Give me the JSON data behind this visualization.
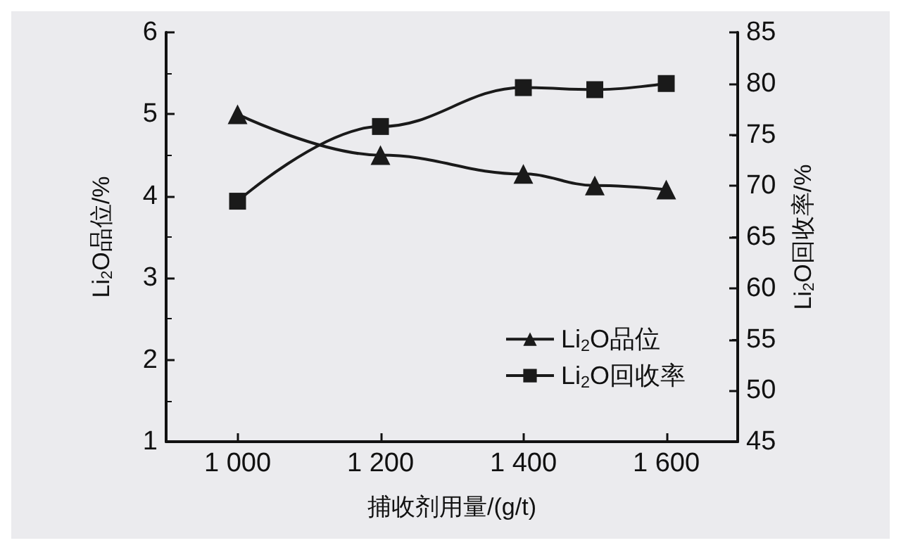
{
  "chart_data": {
    "type": "line",
    "xlabel": "捕收剂用量/(g/t)",
    "ylabel": "Li$_{2}$O品位/%",
    "y2label": "Li$_{2}$O回收率/%",
    "x": [
      1000,
      1200,
      1400,
      1500,
      1600
    ],
    "series": [
      {
        "name": "Li$_{2}$O品位",
        "color": "#1a1a1a",
        "marker": "triangle",
        "values": [
          5.0,
          4.5,
          4.27,
          4.13,
          4.08
        ]
      },
      {
        "name": "Li$_{2}$O回收率",
        "color": "#1a1a1a",
        "marker": "square",
        "axis": "y2",
        "values": [
          68.5,
          75.8,
          79.6,
          79.4,
          80.0
        ]
      }
    ],
    "xlim": [
      900,
      1700
    ],
    "xticks": [
      {
        "value": 1000,
        "label": "1 000"
      },
      {
        "value": 1200,
        "label": "1 200"
      },
      {
        "value": 1400,
        "label": "1 400"
      },
      {
        "value": 1600,
        "label": "1 600"
      }
    ],
    "ylim": [
      1,
      6
    ],
    "yticks": [
      1,
      2,
      3,
      4,
      5,
      6
    ],
    "y2lim": [
      45,
      85
    ],
    "y2ticks": [
      45,
      50,
      55,
      60,
      65,
      70,
      75,
      80,
      85
    ],
    "legend": "bottom right",
    "grid": false,
    "line_style": "solid"
  }
}
